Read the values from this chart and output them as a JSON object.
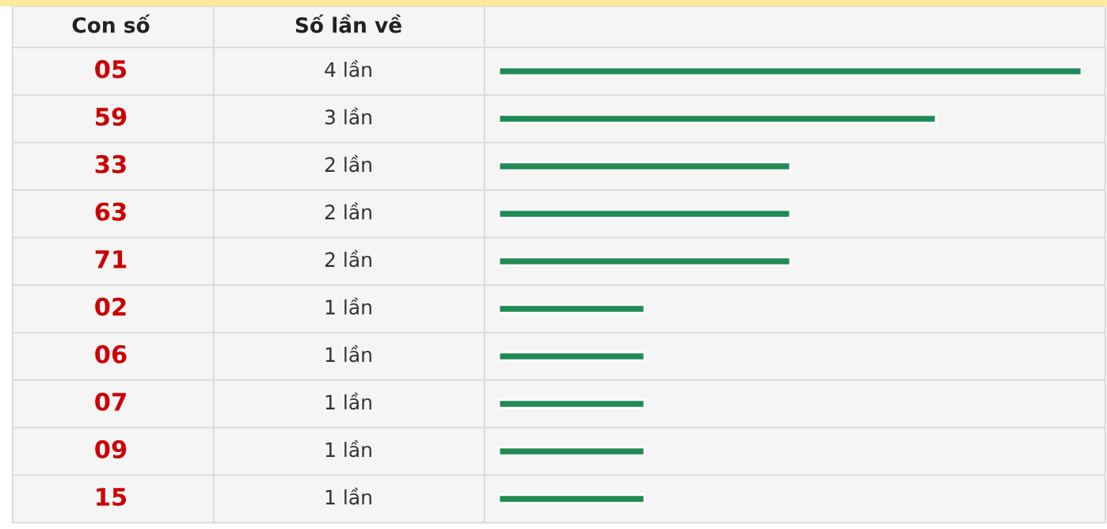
{
  "chart_data": {
    "type": "bar",
    "orientation": "horizontal",
    "annotations": [
      "Con số",
      "Số lần về"
    ],
    "categories": [
      "05",
      "59",
      "33",
      "63",
      "71",
      "02",
      "06",
      "07",
      "09",
      "15"
    ],
    "values": [
      4,
      3,
      2,
      2,
      2,
      1,
      1,
      1,
      1,
      1
    ],
    "value_labels": [
      "4 lần",
      "3 lần",
      "2 lần",
      "2 lần",
      "2 lần",
      "1 lần",
      "1 lần",
      "1 lần",
      "1 lần",
      "1 lần"
    ],
    "color": "#218a55",
    "xlim": [
      0,
      4
    ],
    "tick_labels": false
  }
}
